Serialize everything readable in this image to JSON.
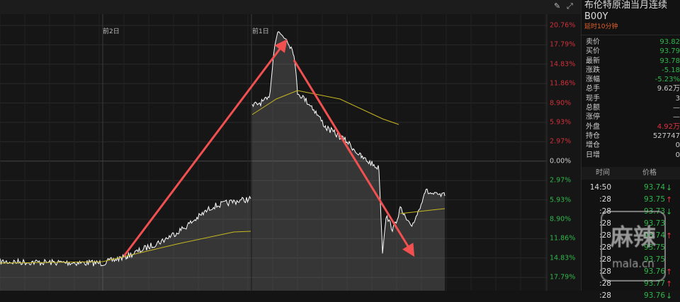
{
  "toolbar": {
    "pen_icon": "pen-icon",
    "expand_icon": "expand-icon"
  },
  "chart": {
    "day_labels": [
      "前2日",
      "前1日"
    ],
    "y_labels": [
      {
        "t": "20.76%",
        "c": "#d0303a"
      },
      {
        "t": "17.79%",
        "c": "#d0303a"
      },
      {
        "t": "14.83%",
        "c": "#d0303a"
      },
      {
        "t": "11.86%",
        "c": "#d0303a"
      },
      {
        "t": "8.90%",
        "c": "#d0303a"
      },
      {
        "t": "5.93%",
        "c": "#d0303a"
      },
      {
        "t": "2.97%",
        "c": "#d0303a"
      },
      {
        "t": "0.00%",
        "c": "#cccccc"
      },
      {
        "t": "2.97%",
        "c": "#2fb64a"
      },
      {
        "t": "5.93%",
        "c": "#2fb64a"
      },
      {
        "t": "8.90%",
        "c": "#2fb64a"
      },
      {
        "t": "11.86%",
        "c": "#2fb64a"
      },
      {
        "t": "14.83%",
        "c": "#2fb64a"
      },
      {
        "t": "17.79%",
        "c": "#2fb64a"
      }
    ],
    "colors": {
      "price": "#ffffff",
      "avg": "#c8b820",
      "arrow": "#f05050"
    }
  },
  "panel": {
    "name": "布伦特原油当月连续",
    "code": "B00Y",
    "delay": "延时10分钟",
    "quotes": [
      {
        "k": "卖价",
        "v": "93.82",
        "c": "g"
      },
      {
        "k": "买价",
        "v": "93.79",
        "c": "g"
      },
      {
        "k": "最新",
        "v": "93.78",
        "c": "g"
      },
      {
        "k": "涨跌",
        "v": "-5.18",
        "c": "g"
      },
      {
        "k": "涨幅",
        "v": "-5.23%",
        "c": "g"
      },
      {
        "k": "总手",
        "v": "9.62万",
        "c": "w"
      },
      {
        "k": "现手",
        "v": "3",
        "c": "w"
      },
      {
        "k": "总额",
        "v": "—",
        "c": "w"
      },
      {
        "k": "涨停",
        "v": "—",
        "c": "w"
      },
      {
        "k": "外盘",
        "v": "4.92万",
        "c": "r"
      },
      {
        "k": "持仓",
        "v": "527747",
        "c": "w"
      },
      {
        "k": "增仓",
        "v": "0",
        "c": "w"
      },
      {
        "k": "日增",
        "v": "0",
        "c": "w"
      }
    ],
    "ticks_header": {
      "time": "时间",
      "price": "价格"
    },
    "ticks": [
      {
        "t": "14:50",
        "p": "93.74",
        "d": "↓"
      },
      {
        "t": ":28",
        "p": "93.75",
        "d": "↑"
      },
      {
        "t": ":28",
        "p": "93.73",
        "d": "↓"
      },
      {
        "t": ":28",
        "p": "93.73",
        "d": ""
      },
      {
        "t": ":28",
        "p": "93.74",
        "d": "↑"
      },
      {
        "t": ":28",
        "p": "93.75",
        "d": ""
      },
      {
        "t": ":28",
        "p": "93.75",
        "d": ""
      },
      {
        "t": ":28",
        "p": "93.76",
        "d": "↑"
      },
      {
        "t": ":28",
        "p": "93.77",
        "d": "↑"
      },
      {
        "t": ":28",
        "p": "93.76",
        "d": "↓"
      }
    ]
  },
  "watermark": {
    "cn": "麻辣",
    "en": "mala.cn"
  }
}
